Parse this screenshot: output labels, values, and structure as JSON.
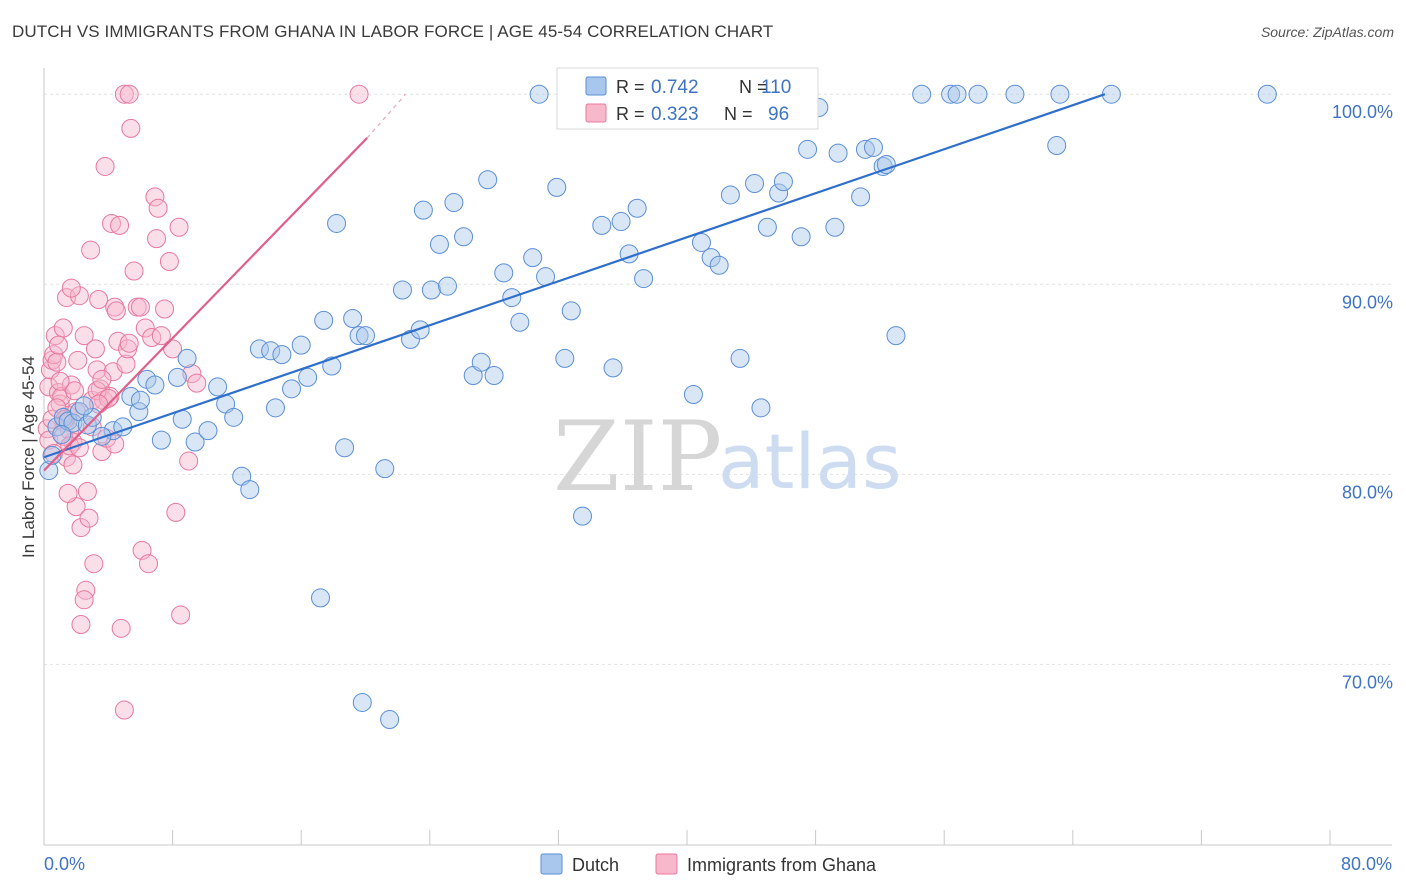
{
  "title": "DUTCH VS IMMIGRANTS FROM GHANA IN LABOR FORCE | AGE 45-54 CORRELATION CHART",
  "source": "Source: ZipAtlas.com",
  "watermark": {
    "zip": "ZIP",
    "atlas": "atlas"
  },
  "colors": {
    "dutch_fill": "#a9c7ec",
    "dutch_stroke": "#5b8fd6",
    "dutch_line": "#2f6fcc",
    "ghana_fill": "#f7b8cb",
    "ghana_stroke": "#e8789c",
    "ghana_line": "#e0608a",
    "grid": "#e2e2e2",
    "tick_label": "#3f73c4"
  },
  "legend_top": {
    "rows": [
      {
        "r_label": "R =",
        "r_value": "0.742",
        "n_label": "N =",
        "n_value": "110"
      },
      {
        "r_label": "R =",
        "r_value": "0.323",
        "n_label": "N =",
        "n_value": "96"
      }
    ]
  },
  "chart_data": {
    "type": "scatter",
    "xlabel": "",
    "ylabel": "In Labor Force | Age 45-54",
    "xlim": [
      0,
      80
    ],
    "ylim": [
      60.5,
      101.8
    ],
    "x_tick_labels": [
      "0.0%",
      "80.0%"
    ],
    "y_ticks": [
      70,
      80,
      90,
      100
    ],
    "y_tick_labels": [
      "70.0%",
      "80.0%",
      "90.0%",
      "100.0%"
    ],
    "legend": [
      "Dutch",
      "Immigrants from Ghana"
    ],
    "series": [
      {
        "name": "Dutch",
        "points": [
          [
            0.3,
            80.2
          ],
          [
            0.8,
            82.5
          ],
          [
            1.2,
            83.0
          ],
          [
            1.5,
            82.8
          ],
          [
            1.8,
            82.7
          ],
          [
            2.2,
            83.3
          ],
          [
            2.7,
            82.6
          ],
          [
            3.0,
            83.0
          ],
          [
            4.3,
            82.3
          ],
          [
            4.9,
            82.5
          ],
          [
            5.4,
            84.1
          ],
          [
            5.9,
            83.3
          ],
          [
            6.4,
            85.0
          ],
          [
            6.9,
            84.7
          ],
          [
            7.3,
            81.8
          ],
          [
            8.3,
            85.1
          ],
          [
            8.6,
            82.9
          ],
          [
            8.9,
            86.1
          ],
          [
            9.4,
            81.7
          ],
          [
            10.2,
            82.3
          ],
          [
            10.8,
            84.6
          ],
          [
            11.3,
            83.7
          ],
          [
            11.8,
            83.0
          ],
          [
            12.3,
            79.9
          ],
          [
            12.8,
            79.2
          ],
          [
            13.4,
            86.6
          ],
          [
            14.1,
            86.5
          ],
          [
            14.4,
            83.5
          ],
          [
            14.8,
            86.3
          ],
          [
            15.4,
            84.5
          ],
          [
            16.0,
            86.8
          ],
          [
            16.4,
            85.1
          ],
          [
            17.2,
            73.5
          ],
          [
            17.4,
            88.1
          ],
          [
            17.9,
            85.7
          ],
          [
            18.2,
            93.2
          ],
          [
            18.7,
            81.4
          ],
          [
            19.2,
            88.2
          ],
          [
            19.6,
            87.3
          ],
          [
            20.0,
            87.3
          ],
          [
            19.8,
            68.0
          ],
          [
            21.2,
            80.3
          ],
          [
            21.5,
            67.1
          ],
          [
            22.3,
            89.7
          ],
          [
            22.8,
            87.1
          ],
          [
            23.4,
            87.6
          ],
          [
            23.6,
            93.9
          ],
          [
            24.1,
            89.7
          ],
          [
            24.6,
            92.1
          ],
          [
            25.1,
            89.9
          ],
          [
            25.5,
            94.3
          ],
          [
            26.1,
            92.5
          ],
          [
            26.7,
            85.2
          ],
          [
            27.2,
            85.9
          ],
          [
            27.6,
            95.5
          ],
          [
            28.0,
            85.2
          ],
          [
            28.6,
            90.6
          ],
          [
            29.1,
            89.3
          ],
          [
            29.6,
            88.0
          ],
          [
            30.4,
            91.4
          ],
          [
            30.8,
            100.0
          ],
          [
            31.2,
            90.4
          ],
          [
            31.9,
            95.1
          ],
          [
            32.4,
            86.1
          ],
          [
            32.8,
            88.6
          ],
          [
            33.5,
            77.8
          ],
          [
            34.7,
            93.1
          ],
          [
            35.4,
            85.6
          ],
          [
            35.9,
            93.3
          ],
          [
            36.4,
            91.6
          ],
          [
            36.9,
            94.0
          ],
          [
            37.3,
            90.3
          ],
          [
            38.2,
            99.6
          ],
          [
            39.9,
            100.0
          ],
          [
            40.4,
            84.2
          ],
          [
            40.9,
            92.2
          ],
          [
            41.5,
            91.4
          ],
          [
            42.0,
            91.0
          ],
          [
            42.7,
            94.7
          ],
          [
            43.3,
            86.1
          ],
          [
            44.2,
            95.3
          ],
          [
            44.6,
            83.5
          ],
          [
            45.0,
            93.0
          ],
          [
            45.7,
            94.8
          ],
          [
            46.0,
            95.4
          ],
          [
            47.1,
            92.5
          ],
          [
            47.5,
            97.1
          ],
          [
            48.2,
            99.3
          ],
          [
            49.2,
            93.0
          ],
          [
            49.4,
            96.9
          ],
          [
            50.8,
            94.6
          ],
          [
            51.1,
            97.1
          ],
          [
            51.6,
            97.2
          ],
          [
            52.2,
            96.2
          ],
          [
            52.4,
            96.3
          ],
          [
            53.0,
            87.3
          ],
          [
            54.6,
            100.0
          ],
          [
            56.4,
            100.0
          ],
          [
            56.8,
            100.0
          ],
          [
            58.1,
            100.0
          ],
          [
            60.4,
            100.0
          ],
          [
            63.0,
            97.3
          ],
          [
            63.2,
            100.0
          ],
          [
            66.4,
            100.0
          ],
          [
            76.1,
            100.0
          ],
          [
            0.5,
            81.0
          ],
          [
            1.1,
            82.1
          ],
          [
            2.5,
            83.6
          ],
          [
            3.6,
            82.0
          ],
          [
            6.0,
            83.9
          ]
        ]
      },
      {
        "name": "Immigrants from Ghana",
        "points": [
          [
            0.3,
            84.6
          ],
          [
            0.4,
            85.5
          ],
          [
            0.5,
            86.0
          ],
          [
            0.6,
            86.3
          ],
          [
            0.7,
            87.3
          ],
          [
            0.8,
            85.9
          ],
          [
            0.9,
            84.3
          ],
          [
            1.0,
            83.7
          ],
          [
            1.1,
            84.1
          ],
          [
            1.2,
            87.7
          ],
          [
            1.3,
            82.7
          ],
          [
            1.4,
            89.3
          ],
          [
            1.5,
            83.1
          ],
          [
            1.6,
            82.3
          ],
          [
            1.7,
            84.7
          ],
          [
            1.8,
            81.7
          ],
          [
            1.9,
            84.4
          ],
          [
            2.0,
            78.3
          ],
          [
            2.2,
            89.4
          ],
          [
            2.3,
            77.2
          ],
          [
            2.5,
            87.3
          ],
          [
            2.6,
            73.9
          ],
          [
            2.7,
            79.1
          ],
          [
            2.9,
            91.8
          ],
          [
            3.0,
            83.9
          ],
          [
            3.1,
            75.3
          ],
          [
            3.2,
            86.6
          ],
          [
            3.3,
            85.5
          ],
          [
            3.4,
            89.2
          ],
          [
            3.5,
            84.5
          ],
          [
            3.6,
            81.2
          ],
          [
            3.7,
            83.9
          ],
          [
            3.8,
            96.2
          ],
          [
            3.9,
            81.9
          ],
          [
            4.1,
            84.1
          ],
          [
            4.2,
            93.2
          ],
          [
            4.3,
            85.4
          ],
          [
            4.4,
            88.8
          ],
          [
            4.5,
            88.6
          ],
          [
            4.6,
            87.0
          ],
          [
            4.7,
            93.1
          ],
          [
            4.8,
            71.9
          ],
          [
            5.0,
            100.0
          ],
          [
            5.1,
            85.8
          ],
          [
            5.2,
            86.6
          ],
          [
            5.3,
            86.9
          ],
          [
            5.4,
            98.2
          ],
          [
            5.6,
            90.7
          ],
          [
            5.8,
            88.8
          ],
          [
            6.0,
            88.8
          ],
          [
            6.1,
            76.0
          ],
          [
            6.3,
            87.7
          ],
          [
            6.5,
            75.3
          ],
          [
            6.7,
            87.2
          ],
          [
            6.9,
            94.6
          ],
          [
            7.0,
            92.4
          ],
          [
            7.1,
            94.0
          ],
          [
            7.3,
            87.3
          ],
          [
            7.5,
            88.7
          ],
          [
            7.8,
            91.2
          ],
          [
            8.0,
            86.6
          ],
          [
            8.2,
            78.0
          ],
          [
            8.4,
            93.0
          ],
          [
            8.5,
            72.6
          ],
          [
            9.0,
            80.7
          ],
          [
            9.2,
            85.3
          ],
          [
            9.5,
            84.8
          ],
          [
            0.2,
            82.4
          ],
          [
            0.3,
            81.8
          ],
          [
            0.5,
            82.9
          ],
          [
            0.6,
            81.1
          ],
          [
            0.8,
            83.5
          ],
          [
            1.0,
            84.9
          ],
          [
            1.2,
            82.0
          ],
          [
            1.4,
            80.9
          ],
          [
            1.6,
            81.5
          ],
          [
            1.8,
            80.5
          ],
          [
            2.0,
            83.3
          ],
          [
            2.3,
            72.1
          ],
          [
            2.5,
            73.4
          ],
          [
            3.0,
            82.5
          ],
          [
            3.3,
            84.4
          ],
          [
            3.6,
            85.0
          ],
          [
            4.0,
            84.0
          ],
          [
            4.4,
            81.6
          ],
          [
            5.0,
            67.6
          ],
          [
            2.8,
            77.7
          ],
          [
            1.7,
            89.8
          ],
          [
            2.1,
            86.0
          ],
          [
            0.9,
            86.8
          ],
          [
            1.3,
            82.9
          ],
          [
            19.6,
            100.0
          ],
          [
            5.3,
            100.0
          ],
          [
            3.4,
            83.7
          ],
          [
            2.2,
            81.4
          ],
          [
            1.5,
            79.0
          ]
        ]
      }
    ],
    "trend_lines": [
      {
        "name": "Dutch",
        "from": [
          0,
          80.9
        ],
        "to": [
          66.0,
          100.0
        ]
      },
      {
        "name": "Immigrants from Ghana",
        "from": [
          0,
          80.2
        ],
        "to": [
          20.1,
          97.7
        ],
        "dashed_to": [
          22.5,
          100.0
        ]
      }
    ]
  }
}
